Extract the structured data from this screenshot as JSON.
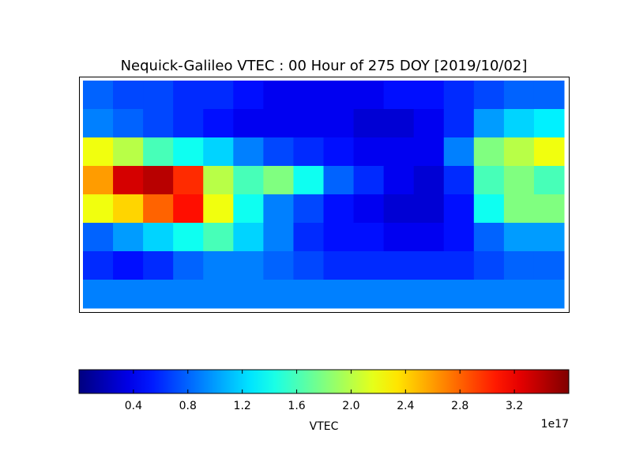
{
  "chart_data": {
    "type": "heatmap",
    "title": "Nequick-Galileo VTEC : 00 Hour of 275 DOY [2019/10/02]",
    "colormap": "jet",
    "values": [
      [
        0.8,
        0.7,
        0.7,
        0.6,
        0.6,
        0.5,
        0.4,
        0.4,
        0.4,
        0.4,
        0.5,
        0.5,
        0.6,
        0.7,
        0.8,
        0.8
      ],
      [
        0.9,
        0.8,
        0.7,
        0.6,
        0.5,
        0.4,
        0.4,
        0.4,
        0.4,
        0.3,
        0.3,
        0.4,
        0.6,
        1.0,
        1.2,
        1.3
      ],
      [
        2.2,
        2.0,
        1.6,
        1.4,
        1.2,
        0.9,
        0.7,
        0.6,
        0.5,
        0.4,
        0.4,
        0.4,
        0.9,
        1.8,
        2.0,
        2.2
      ],
      [
        2.6,
        3.3,
        3.4,
        3.0,
        2.0,
        1.6,
        1.8,
        1.4,
        0.8,
        0.6,
        0.4,
        0.3,
        0.6,
        1.6,
        1.8,
        1.6
      ],
      [
        2.2,
        2.4,
        2.8,
        3.1,
        2.2,
        1.4,
        0.9,
        0.7,
        0.5,
        0.4,
        0.3,
        0.3,
        0.5,
        1.4,
        1.8,
        1.8
      ],
      [
        0.8,
        1.0,
        1.2,
        1.4,
        1.6,
        1.2,
        0.9,
        0.6,
        0.5,
        0.5,
        0.4,
        0.4,
        0.5,
        0.8,
        1.0,
        1.0
      ],
      [
        0.6,
        0.5,
        0.6,
        0.8,
        0.9,
        0.9,
        0.8,
        0.7,
        0.6,
        0.6,
        0.6,
        0.6,
        0.6,
        0.7,
        0.8,
        0.8
      ],
      [
        0.9,
        0.9,
        0.9,
        0.9,
        0.9,
        0.9,
        0.9,
        0.9,
        0.9,
        0.9,
        0.9,
        0.9,
        0.9,
        0.9,
        0.9,
        0.9
      ]
    ],
    "colorbar": {
      "label": "VTEC",
      "offset_label": "1e17",
      "zlim": [
        0,
        3.6
      ],
      "ticks": [
        0.4,
        0.8,
        1.2,
        1.6,
        {
          "value": 2,
          "label": "2.0"
        },
        2.4,
        2.8,
        3.2
      ]
    }
  }
}
